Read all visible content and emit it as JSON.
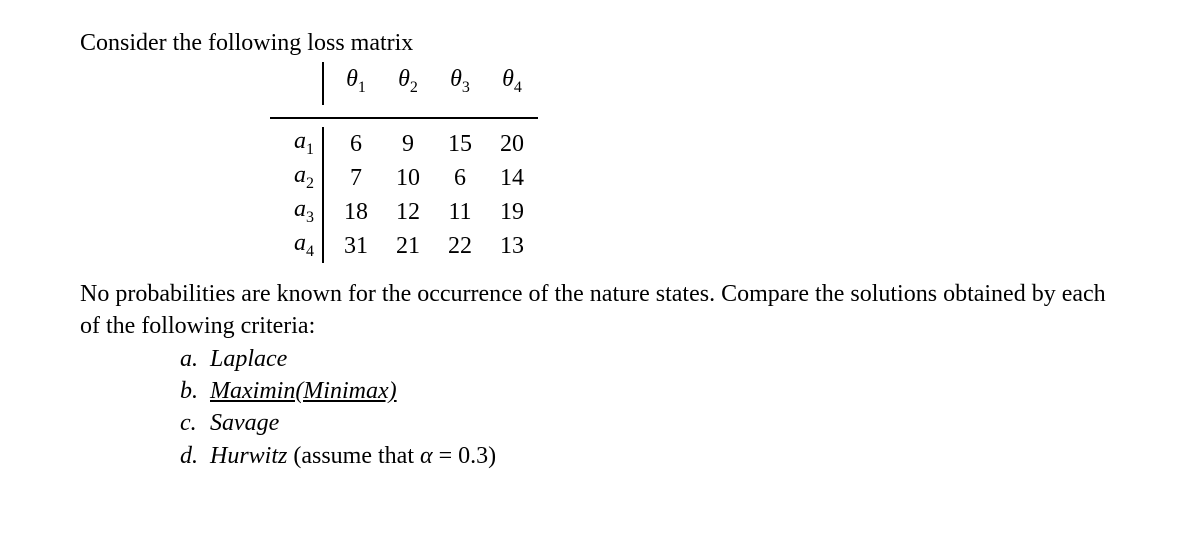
{
  "intro_text": "Consider the following loss matrix",
  "matrix": {
    "col_headers": [
      {
        "sym": "θ",
        "sub": "1"
      },
      {
        "sym": "θ",
        "sub": "2"
      },
      {
        "sym": "θ",
        "sub": "3"
      },
      {
        "sym": "θ",
        "sub": "4"
      }
    ],
    "row_headers": [
      {
        "sym": "a",
        "sub": "1"
      },
      {
        "sym": "a",
        "sub": "2"
      },
      {
        "sym": "a",
        "sub": "3"
      },
      {
        "sym": "a",
        "sub": "4"
      }
    ],
    "rows": [
      [
        "6",
        "9",
        "15",
        "20"
      ],
      [
        "7",
        "10",
        "6",
        "14"
      ],
      [
        "18",
        "12",
        "11",
        "19"
      ],
      [
        "31",
        "21",
        "22",
        "13"
      ]
    ],
    "border_color": "#000000",
    "font_family": "Times New Roman",
    "cell_fontsize": 24,
    "sub_fontsize": 16
  },
  "criteria_text": "No probabilities are known for the occurrence of the nature states. Compare the solutions obtained by each of the following criteria:",
  "criteria": {
    "a": {
      "label": "Laplace"
    },
    "b": {
      "label": "Maximin(Minimax)",
      "underline": true
    },
    "c": {
      "label": "Savage"
    },
    "d": {
      "label_prefix": "Hurwitz",
      "paren_text": " (assume that ",
      "alpha_sym": "α",
      "equals": " = ",
      "alpha_val": "0.3",
      "close": ")"
    }
  },
  "letters": {
    "a": "a.",
    "b": "b.",
    "c": "c.",
    "d": "d."
  },
  "colors": {
    "text": "#000000",
    "background": "#ffffff"
  }
}
